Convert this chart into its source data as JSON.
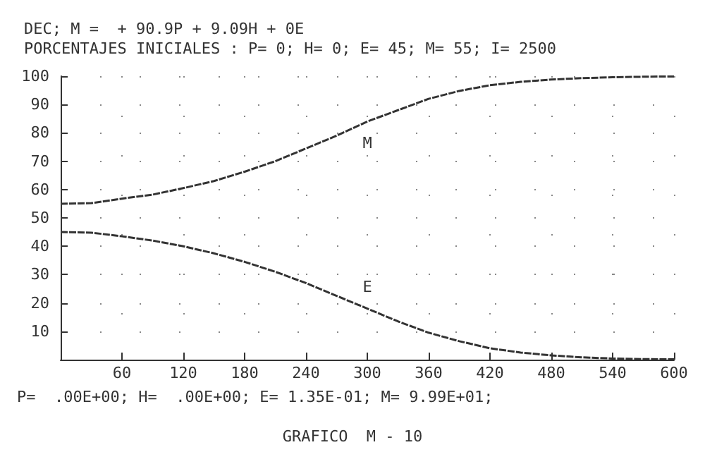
{
  "chart_data": {
    "type": "line",
    "title": "DEC; M =  + 90.9P + 9.09H + 0E",
    "subtitle": "PORCENTAJES INICIALES : P= 0; H= 0; E= 45; M= 55; I= 2500",
    "x": [
      0,
      30,
      60,
      90,
      120,
      150,
      180,
      210,
      240,
      270,
      300,
      330,
      360,
      390,
      420,
      450,
      480,
      510,
      540,
      570,
      600
    ],
    "series": [
      {
        "name": "M",
        "color": "#333333",
        "values": [
          55,
          55.2,
          56.8,
          58.2,
          60.5,
          63,
          66.3,
          70,
          74.5,
          79,
          84,
          88,
          92,
          94.8,
          96.8,
          98,
          98.8,
          99.3,
          99.6,
          99.8,
          99.9
        ]
      },
      {
        "name": "E",
        "color": "#333333",
        "values": [
          45,
          44.8,
          43.5,
          42,
          40,
          37.5,
          34.5,
          31,
          27,
          22.5,
          18,
          13.5,
          9.5,
          6.5,
          4,
          2.5,
          1.5,
          0.8,
          0.4,
          0.2,
          0.1
        ]
      }
    ],
    "xlim": [
      0,
      600
    ],
    "xticks": [
      {
        "value": 0,
        "label": null
      },
      60,
      120,
      180,
      240,
      300,
      360,
      420,
      480,
      540,
      600
    ],
    "ylim": [
      0,
      100
    ],
    "yticks": [
      {
        "value": 0,
        "label": null
      },
      10,
      20,
      30,
      40,
      50,
      60,
      70,
      80,
      90,
      100
    ],
    "grid": true,
    "marker": "none",
    "line_style": "dashed",
    "legend": false,
    "annotations": [
      "P=  .00E+00; H=  .00E+00; E= 1.35E-01; M= 9.99E+01;",
      "GRAFICO  M - 10"
    ]
  }
}
